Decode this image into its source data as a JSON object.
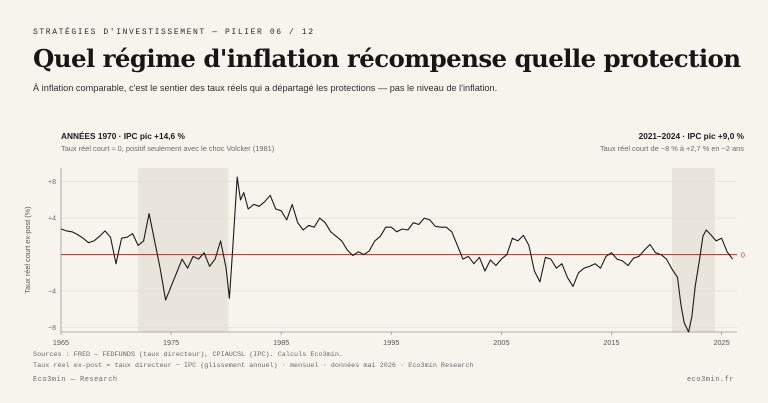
{
  "header": {
    "eyebrow": "STRATÉGIES D'INVESTISSEMENT — PILIER 06 / 12",
    "title": "Quel régime d'inflation récompense quelle protection",
    "subtitle": "À inflation comparable, c'est le sentier des taux réels qui a départagé les protections — pas le niveau de l'inflation."
  },
  "annotations": {
    "left_title": "ANNÉES 1970 · IPC pic +14,6 %",
    "left_sub": "Taux réel court ≈ 0, positif seulement avec le choc Volcker (1981)",
    "right_title": "2021–2024 · IPC pic +9,0 %",
    "right_sub": "Taux réel court de −8 % à +2,7 % en ~2 ans"
  },
  "chart_data": {
    "type": "line",
    "ylabel": "Taux réel court ex-post (%)",
    "xlim": [
      1965,
      2026.4
    ],
    "ylim": [
      -8.5,
      9.5
    ],
    "yticks": [
      8,
      4,
      -4,
      -8
    ],
    "ytick_labels": [
      "+8",
      "+4",
      "−4",
      "−8"
    ],
    "xticks": [
      1965,
      1975,
      1985,
      1995,
      2005,
      2015,
      2025
    ],
    "zero_label": "0",
    "shaded_periods": [
      [
        1972,
        1980.2
      ],
      [
        2020.5,
        2024.4
      ]
    ],
    "colors": {
      "line": "#1a1a1a",
      "zero": "#c0442c",
      "shade": "#e9e5dc",
      "axis": "#9a9a9a"
    },
    "series": [
      {
        "x": [
          1965,
          1965.5,
          1966,
          1966.5,
          1967,
          1967.5,
          1968,
          1968.5,
          1969,
          1969.5,
          1970,
          1970.5,
          1971,
          1971.5,
          1972,
          1972.5,
          1973,
          1973.5,
          1974,
          1974.5,
          1975,
          1975.5,
          1976,
          1976.5,
          1977,
          1977.5,
          1978,
          1978.5,
          1979,
          1979.5,
          1980,
          1980.3,
          1980.6,
          1981,
          1981.3,
          1981.6,
          1982,
          1982.5,
          1983,
          1983.5,
          1984,
          1984.5,
          1985,
          1985.5,
          1986,
          1986.5,
          1987,
          1987.5,
          1988,
          1988.5,
          1989,
          1989.5,
          1990,
          1990.5,
          1991,
          1991.5,
          1992,
          1992.5,
          1993,
          1993.5,
          1994,
          1994.5,
          1995,
          1995.5,
          1996,
          1996.5,
          1997,
          1997.5,
          1998,
          1998.5,
          1999,
          1999.5,
          2000,
          2000.5,
          2001,
          2001.5,
          2002,
          2002.5,
          2003,
          2003.5,
          2004,
          2004.5,
          2005,
          2005.5,
          2006,
          2006.5,
          2007,
          2007.5,
          2008,
          2008.5,
          2009,
          2009.5,
          2010,
          2010.5,
          2011,
          2011.5,
          2012,
          2012.5,
          2013,
          2013.5,
          2014,
          2014.5,
          2015,
          2015.5,
          2016,
          2016.5,
          2017,
          2017.5,
          2018,
          2018.5,
          2019,
          2019.5,
          2020,
          2020.5,
          2021,
          2021.3,
          2021.6,
          2022,
          2022.3,
          2022.6,
          2023,
          2023.3,
          2023.6,
          2024,
          2024.5,
          2025,
          2025.5,
          2026
        ],
        "y": [
          2.8,
          2.6,
          2.5,
          2.2,
          1.8,
          1.3,
          1.5,
          2.0,
          2.6,
          1.9,
          -1.0,
          1.8,
          1.9,
          2.3,
          1.0,
          1.5,
          4.5,
          1.5,
          -1.5,
          -5.0,
          -3.5,
          -2.0,
          -0.5,
          -1.5,
          -0.2,
          -0.5,
          0.2,
          -1.3,
          -0.5,
          1.5,
          -1.5,
          -4.8,
          0.8,
          8.5,
          6.0,
          6.8,
          5.0,
          5.5,
          5.3,
          5.8,
          6.5,
          5.0,
          4.8,
          3.8,
          5.5,
          3.5,
          2.7,
          3.2,
          3.0,
          4.0,
          3.5,
          2.5,
          2.0,
          1.5,
          0.5,
          -0.1,
          0.3,
          0.0,
          0.4,
          1.5,
          2.0,
          3.0,
          3.0,
          2.5,
          2.8,
          2.7,
          3.5,
          3.3,
          4.0,
          3.8,
          3.1,
          3.0,
          3.0,
          2.5,
          1.0,
          -0.5,
          -0.2,
          -1.0,
          -0.3,
          -1.8,
          -0.6,
          -1.2,
          -0.5,
          0.0,
          1.8,
          1.5,
          2.1,
          1.0,
          -1.8,
          -3.0,
          -0.3,
          -0.5,
          -1.5,
          -1.0,
          -2.5,
          -3.5,
          -2.0,
          -1.5,
          -1.3,
          -1.0,
          -1.5,
          -0.2,
          0.2,
          -0.5,
          -0.7,
          -1.2,
          -0.4,
          -0.2,
          0.5,
          1.1,
          0.2,
          0.0,
          -0.5,
          -1.6,
          -2.5,
          -5.5,
          -7.5,
          -8.5,
          -6.8,
          -3.5,
          -0.5,
          2.0,
          2.7,
          2.2,
          1.5,
          1.8,
          0.3,
          -0.5
        ]
      }
    ]
  },
  "source": {
    "line1": "Sources : FRED — FEDFUNDS (taux directeur), CPIAUCSL (IPC). Calculs Eco3min.",
    "line2": "Taux réel ex-post = taux directeur − IPC (glissement annuel) · mensuel · données mai 2026 · Eco3min Research"
  },
  "footer": {
    "left": "Eco3min — Research",
    "right": "eco3min.fr"
  }
}
